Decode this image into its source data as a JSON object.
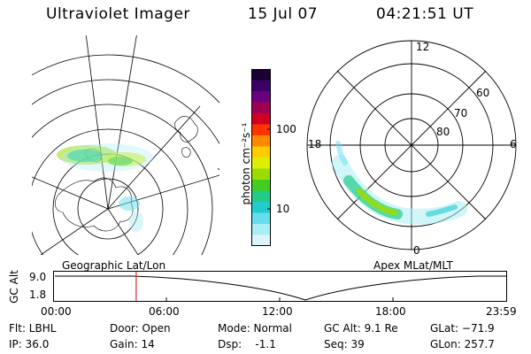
{
  "header": {
    "instrument": "Ultraviolet Imager",
    "date": "15 Jul 07",
    "time": "04:21:51 UT"
  },
  "geo_map": {
    "label": "Geographic Lat/Lon"
  },
  "colorbar": {
    "unit_label": "photon cm⁻²s⁻¹",
    "ticks": [
      "100",
      "10"
    ],
    "colors": [
      "#1a0033",
      "#3a0066",
      "#6a0080",
      "#a00050",
      "#d00020",
      "#ff3300",
      "#ff8800",
      "#ffcc00",
      "#ddee00",
      "#99dd00",
      "#44cc22",
      "#22cc88",
      "#22cccc",
      "#66ddee",
      "#aaeef5",
      "#ddf5fa"
    ]
  },
  "mag_map": {
    "label": "Apex MLat/MLT",
    "lat_labels": [
      "60",
      "70",
      "80"
    ],
    "mlt_labels": [
      "12",
      "18",
      "6",
      "0"
    ]
  },
  "timeline": {
    "axis_label": "GC Alt",
    "y_ticks": [
      "9.0",
      "1.8"
    ],
    "x_ticks": [
      "00:00",
      "06:00",
      "12:00",
      "18:00",
      "23:59"
    ],
    "current_marker_color": "#dd0000",
    "current_time_fraction": 0.1818
  },
  "info": {
    "filter": "Flt: LBHL",
    "ip": "IP: 36.0",
    "door": "Door: Open",
    "gain": "Gain: 14",
    "mode": "Mode: Normal",
    "dsp": "Dsp:    -1.1",
    "gc_alt": "GC Alt: 9.1 Re",
    "seq": "Seq: 39",
    "glat": "GLat: −71.9",
    "glon": "GLon: 257.7"
  }
}
